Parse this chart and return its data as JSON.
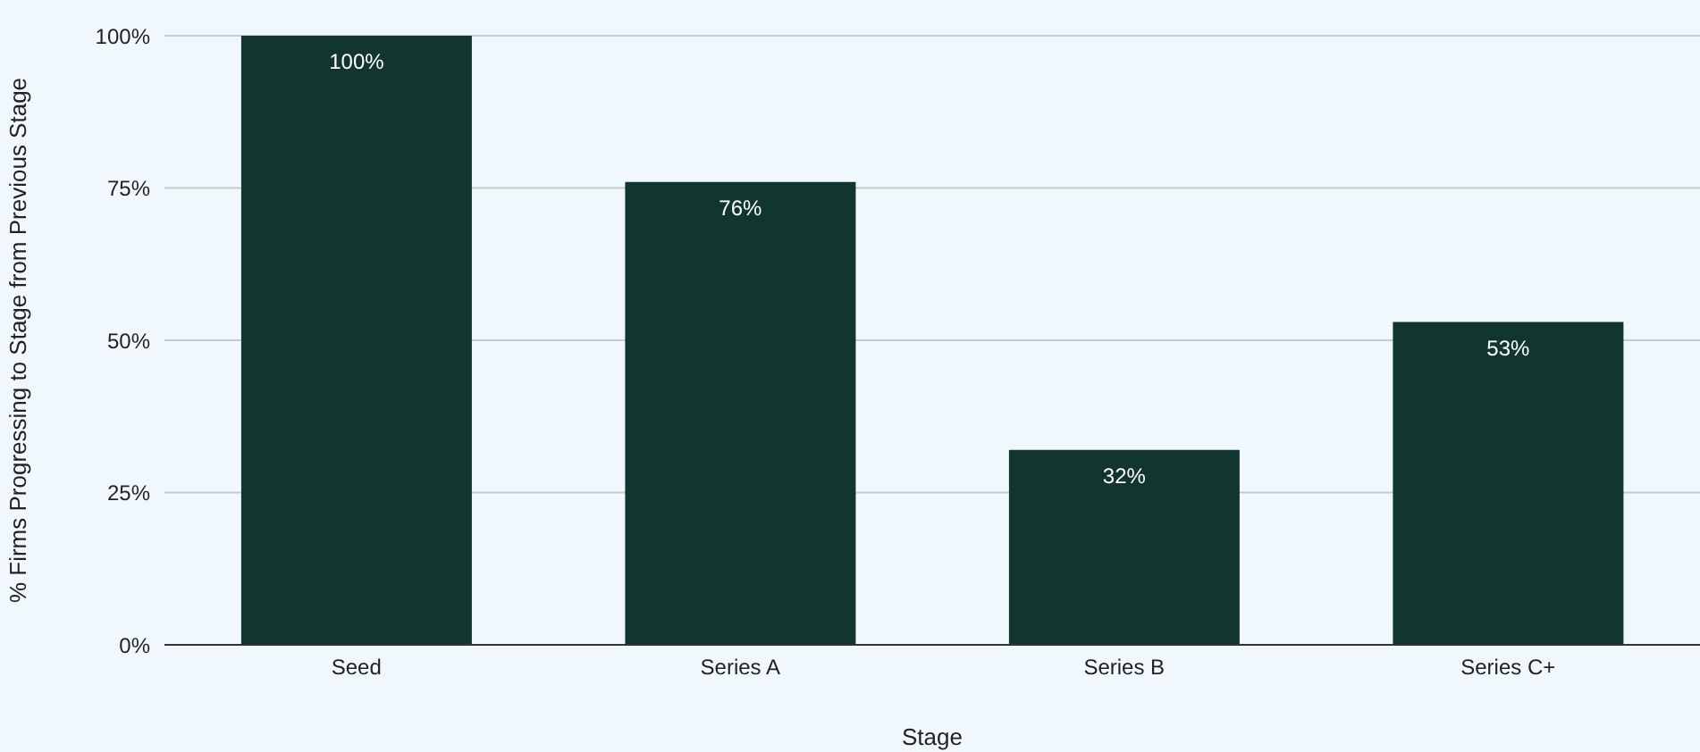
{
  "chart_data": {
    "type": "bar",
    "xlabel": "Stage",
    "ylabel": "% Firms Progressing to Stage from Previous Stage",
    "categories": [
      "Seed",
      "Series A",
      "Series B",
      "Series C+"
    ],
    "values": [
      100,
      76,
      32,
      53
    ],
    "value_labels": [
      "100%",
      "76%",
      "32%",
      "53%"
    ],
    "color": "#11352f",
    "ylim": [
      0,
      100
    ],
    "yticks": [
      {
        "value": 0,
        "label": "0%"
      },
      {
        "value": 25,
        "label": "25%"
      },
      {
        "value": 50,
        "label": "50%"
      },
      {
        "value": 75,
        "label": "75%"
      },
      {
        "value": 100,
        "label": "100%"
      }
    ],
    "grid": "y",
    "legend": false
  }
}
